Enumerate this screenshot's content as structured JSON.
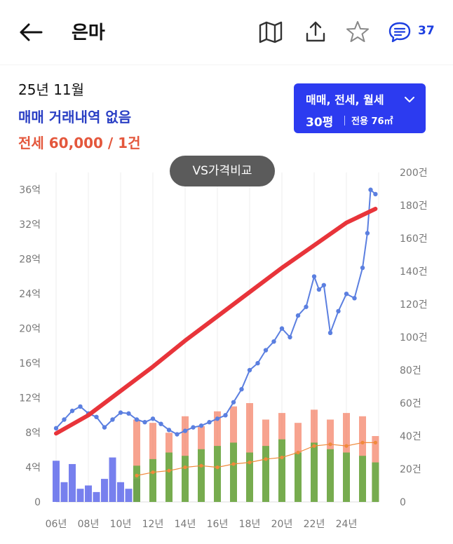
{
  "header": {
    "title": "은마",
    "comment_count": "37",
    "icons": [
      "back-arrow-icon",
      "map-icon",
      "share-icon",
      "star-icon",
      "chat-icon"
    ]
  },
  "info": {
    "date": "25년 11월",
    "sale_status": "매매 거래내역 없음",
    "jeonse_summary": "전세 60,000 / 1건"
  },
  "filter": {
    "trade_types": "매매, 전세, 월세",
    "size": "30평",
    "area": "전용 76㎡"
  },
  "vs_button": "VS가격비교",
  "colors": {
    "accent": "#2c3bf0",
    "sale_text": "#2a3fc4",
    "jeonse_text": "#e4573c",
    "sale_line": "#5b7fe0",
    "trend_line": "#e8343a",
    "jeonse_dots": "#f08a3c",
    "sale_volume_bars": "#4a55e8",
    "jeonse_volume_bars": "#f4846a",
    "rent_volume_bars": "#4caf3a"
  },
  "chart_data": {
    "type": "line",
    "x_tick_labels": [
      "06년",
      "08년",
      "10년",
      "12년",
      "14년",
      "16년",
      "18년",
      "20년",
      "22년",
      "24년"
    ],
    "y_left_ticks": [
      "0",
      "4억",
      "8억",
      "12억",
      "16억",
      "20억",
      "24억",
      "28억",
      "32억",
      "36억"
    ],
    "y_right_ticks": [
      "0",
      "20건",
      "40건",
      "60건",
      "80건",
      "100건",
      "120건",
      "140건",
      "160건",
      "180건",
      "200건"
    ],
    "x_range": [
      2006.0,
      2026.0
    ],
    "y_left_range": [
      0,
      38
    ],
    "y_right_range": [
      0,
      200
    ],
    "grid": "vertical",
    "series": [
      {
        "axis": "left",
        "x": [
          2006.0,
          2006.5,
          2007.0,
          2007.5,
          2008.0,
          2008.5,
          2009.0,
          2009.5,
          2010.0,
          2010.5,
          2011.0,
          2011.5,
          2012.0,
          2012.5,
          2013.0,
          2013.5,
          2014.0,
          2014.5,
          2015.0,
          2015.5,
          2016.0,
          2016.5,
          2017.0,
          2017.5,
          2018.0,
          2018.5,
          2019.0,
          2019.5,
          2020.0,
          2020.5,
          2021.0,
          2021.5,
          2022.0,
          2022.3,
          2022.6,
          2023.0,
          2023.5,
          2024.0,
          2024.5,
          2025.0,
          2025.3,
          2025.5,
          2025.8
        ],
        "values": [
          8.5,
          9.5,
          10.5,
          11.0,
          10.2,
          9.8,
          8.6,
          9.5,
          10.3,
          10.2,
          9.5,
          9.2,
          9.6,
          9.0,
          8.3,
          7.8,
          8.2,
          8.6,
          8.8,
          9.2,
          9.6,
          10.0,
          11.5,
          13.0,
          15.2,
          16.0,
          17.5,
          18.5,
          20.0,
          19.0,
          21.5,
          22.5,
          26.0,
          24.5,
          25.0,
          19.5,
          22.0,
          24.0,
          23.5,
          27.0,
          31.0,
          36.0,
          35.5
        ]
      },
      {
        "axis": "left",
        "x": [
          2006.0,
          2008.0,
          2010.0,
          2012.0,
          2014.0,
          2016.0,
          2018.0,
          2020.0,
          2022.0,
          2024.0,
          2025.8
        ],
        "values": [
          7.9,
          10.0,
          12.8,
          15.6,
          18.6,
          21.4,
          24.2,
          27.0,
          29.6,
          32.2,
          33.8
        ]
      },
      {
        "axis": "right",
        "x": [
          2011.0,
          2012.0,
          2013.0,
          2014.0,
          2015.0,
          2016.0,
          2017.0,
          2018.0,
          2019.0,
          2020.0,
          2021.0,
          2022.0,
          2023.0,
          2024.0,
          2025.0,
          2025.8
        ],
        "values": [
          16,
          18,
          19,
          21,
          22,
          21,
          23,
          24,
          26,
          27,
          30,
          34,
          35,
          34,
          36,
          36
        ]
      }
    ],
    "volume_bars": [
      {
        "axis": "right",
        "x": [
          2006.0,
          2006.5,
          2007.0,
          2007.5,
          2008.0,
          2008.5,
          2009.0,
          2009.5,
          2010.0,
          2010.5,
          2011.0
        ],
        "values": [
          25,
          12,
          23,
          8,
          10,
          6,
          14,
          27,
          12,
          8,
          14
        ]
      },
      {
        "axis": "right",
        "x": [
          2011.0,
          2012.0,
          2013.0,
          2014.0,
          2015.0,
          2016.0,
          2017.0,
          2018.0,
          2019.0,
          2020.0,
          2021.0,
          2022.0,
          2023.0,
          2024.0,
          2025.0,
          2025.8
        ],
        "values": [
          50,
          48,
          42,
          52,
          46,
          55,
          58,
          60,
          50,
          54,
          48,
          56,
          50,
          54,
          52,
          40
        ]
      },
      {
        "axis": "right",
        "x": [
          2011.0,
          2012.0,
          2013.0,
          2014.0,
          2015.0,
          2016.0,
          2017.0,
          2018.0,
          2019.0,
          2020.0,
          2021.0,
          2022.0,
          2023.0,
          2024.0,
          2025.0,
          2025.8
        ],
        "values": [
          22,
          26,
          30,
          28,
          32,
          34,
          36,
          30,
          34,
          38,
          30,
          36,
          32,
          30,
          28,
          24
        ]
      }
    ]
  }
}
